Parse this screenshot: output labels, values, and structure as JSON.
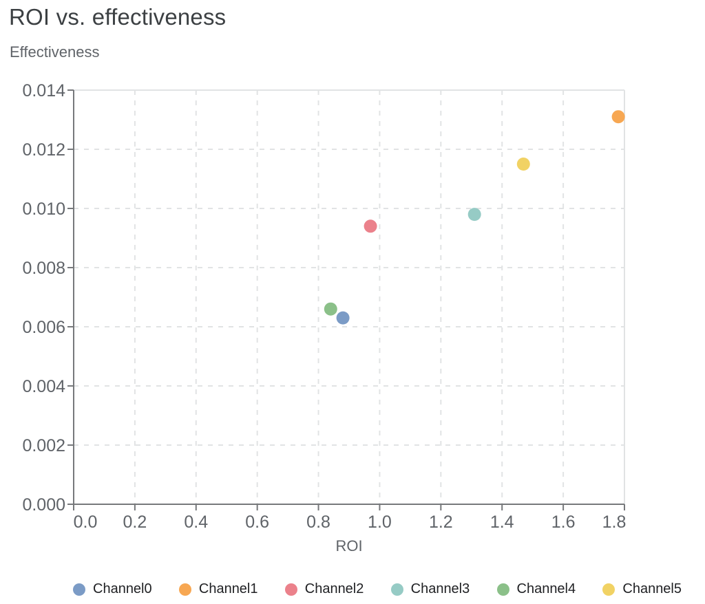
{
  "chart_data": {
    "type": "scatter",
    "title": "ROI vs. effectiveness",
    "xlabel": "ROI",
    "ylabel": "Effectiveness",
    "xlim": [
      0,
      1.8
    ],
    "ylim": [
      0,
      0.014
    ],
    "x_tick_labels": [
      "0.0",
      "0.2",
      "0.4",
      "0.6",
      "0.8",
      "1.0",
      "1.2",
      "1.4",
      "1.6",
      "1.8"
    ],
    "y_tick_labels": [
      "0.000",
      "0.002",
      "0.004",
      "0.006",
      "0.008",
      "0.010",
      "0.012",
      "0.014"
    ],
    "grid": "dashed",
    "legend_position": "bottom",
    "series": [
      {
        "name": "Channel0",
        "color": "#7B9BC6",
        "x": 0.88,
        "y": 0.0063
      },
      {
        "name": "Channel1",
        "color": "#F7A752",
        "x": 1.78,
        "y": 0.0131
      },
      {
        "name": "Channel2",
        "color": "#EB818B",
        "x": 0.97,
        "y": 0.0094
      },
      {
        "name": "Channel3",
        "color": "#96CBC5",
        "x": 1.31,
        "y": 0.0098
      },
      {
        "name": "Channel4",
        "color": "#8BC089",
        "x": 0.84,
        "y": 0.0066
      },
      {
        "name": "Channel5",
        "color": "#F1D264",
        "x": 1.47,
        "y": 0.0115
      }
    ]
  },
  "colors": {
    "title": "#3c4043",
    "subtitle": "#5f6368",
    "axis": "#76787b",
    "tick_label": "#5f6368",
    "grid": "#e1e3e4",
    "legend_text": "#202124",
    "background": "#ffffff"
  }
}
